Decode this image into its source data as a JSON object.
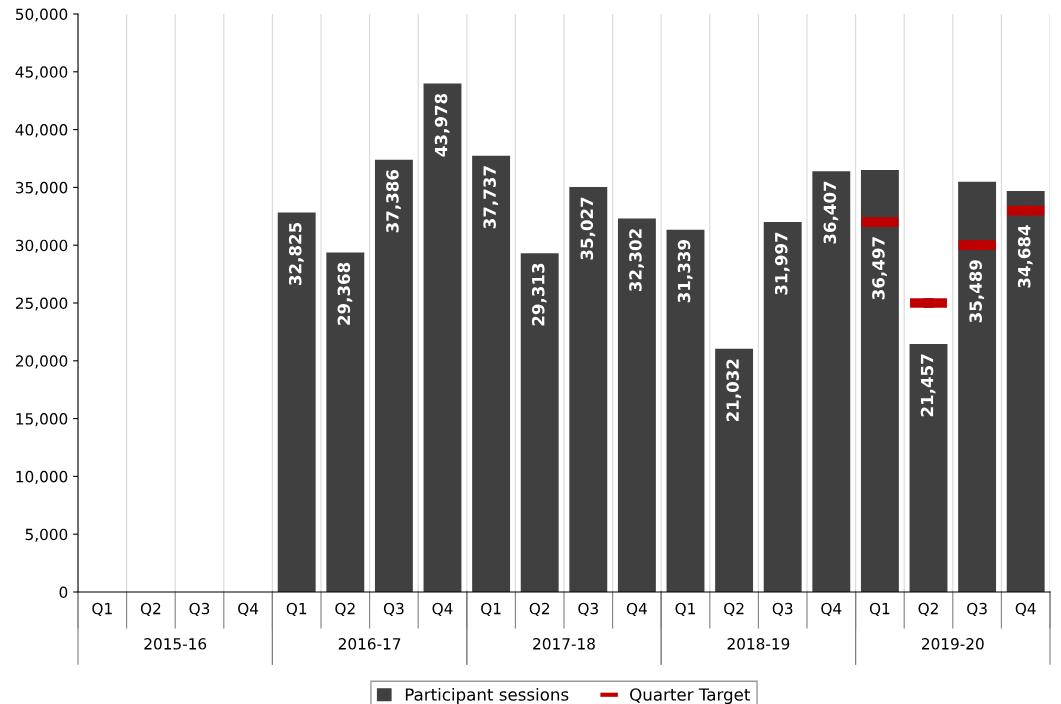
{
  "chart_data": {
    "type": "bar",
    "categories": [
      "Q1",
      "Q2",
      "Q3",
      "Q4",
      "Q1",
      "Q2",
      "Q3",
      "Q4",
      "Q1",
      "Q2",
      "Q3",
      "Q4",
      "Q1",
      "Q2",
      "Q3",
      "Q4",
      "Q1",
      "Q2",
      "Q3",
      "Q4"
    ],
    "series": [
      {
        "name": "Participant sessions",
        "type": "bar",
        "color": "#404040",
        "values": [
          null,
          null,
          null,
          null,
          32825,
          29368,
          37386,
          43978,
          37737,
          29313,
          35027,
          32302,
          31339,
          21032,
          31997,
          36407,
          36497,
          21457,
          35489,
          34684
        ],
        "value_labels": [
          null,
          null,
          null,
          null,
          "32,825",
          "29,368",
          "37,386",
          "43,978",
          "37,737",
          "29,313",
          "35,027",
          "32,302",
          "31,339",
          "21,032",
          "31,997",
          "36,407",
          "36,497",
          "21,457",
          "35,489",
          "34,684"
        ]
      },
      {
        "name": "Quarter Target",
        "type": "scatter",
        "color": "#c00000",
        "values": [
          null,
          null,
          null,
          null,
          null,
          null,
          null,
          null,
          null,
          null,
          null,
          null,
          null,
          null,
          null,
          null,
          32000,
          25000,
          30000,
          33000
        ]
      }
    ],
    "ylim": [
      0,
      50000
    ],
    "yticks": [
      {
        "value": 0,
        "label": "0"
      },
      {
        "value": 5000,
        "label": "5,000"
      },
      {
        "value": 10000,
        "label": "10,000"
      },
      {
        "value": 15000,
        "label": "15,000"
      },
      {
        "value": 20000,
        "label": "20,000"
      },
      {
        "value": 25000,
        "label": "25,000"
      },
      {
        "value": 30000,
        "label": "30,000"
      },
      {
        "value": 35000,
        "label": "35,000"
      },
      {
        "value": 40000,
        "label": "40,000"
      },
      {
        "value": 45000,
        "label": "45,000"
      },
      {
        "value": 50000,
        "label": "50,000"
      }
    ],
    "annotations": [
      "2015-16",
      "2016-17",
      "2017-18",
      "2018-19",
      "2019-20"
    ],
    "grid": false,
    "legend": "bottom"
  }
}
